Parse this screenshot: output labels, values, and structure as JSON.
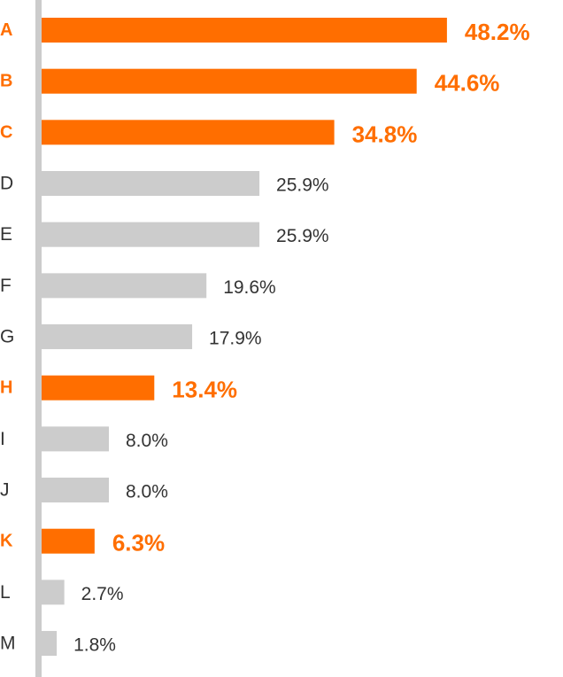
{
  "chart_data": {
    "type": "bar",
    "orientation": "horizontal",
    "categories": [
      "A",
      "B",
      "C",
      "D",
      "E",
      "F",
      "G",
      "H",
      "I",
      "J",
      "K",
      "L",
      "M"
    ],
    "values": [
      48.2,
      44.6,
      34.8,
      25.9,
      25.9,
      19.6,
      17.9,
      13.4,
      8.0,
      8.0,
      6.3,
      2.7,
      1.8
    ],
    "value_labels": [
      "48.2%",
      "44.6%",
      "34.8%",
      "25.9%",
      "25.9%",
      "19.6%",
      "17.9%",
      "13.4%",
      "8.0%",
      "8.0%",
      "6.3%",
      "2.7%",
      "1.8%"
    ],
    "highlighted": [
      true,
      true,
      true,
      false,
      false,
      false,
      false,
      true,
      false,
      false,
      true,
      false,
      false
    ],
    "xlim": [
      0,
      50
    ],
    "title": "",
    "xlabel": "",
    "ylabel": "",
    "grid": false,
    "colors": {
      "highlight": "#ff6e00",
      "normal": "#cccccc",
      "axis": "#cccccc",
      "normal_text": "#333333"
    }
  }
}
